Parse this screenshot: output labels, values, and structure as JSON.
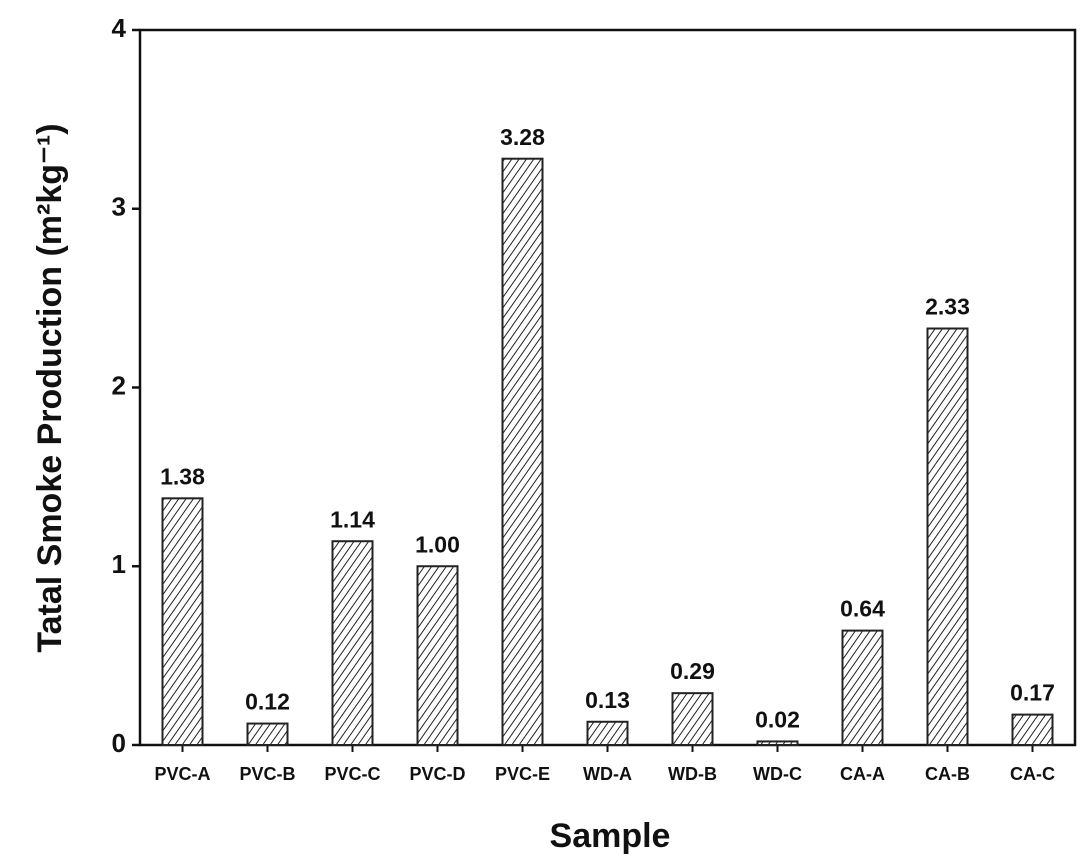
{
  "chart_data": {
    "type": "bar",
    "categories": [
      "PVC-A",
      "PVC-B",
      "PVC-C",
      "PVC-D",
      "PVC-E",
      "WD-A",
      "WD-B",
      "WD-C",
      "CA-A",
      "CA-B",
      "CA-C"
    ],
    "values": [
      1.38,
      0.12,
      1.14,
      1.0,
      3.28,
      0.13,
      0.29,
      0.02,
      0.64,
      2.33,
      0.17
    ],
    "value_labels": [
      "1.38",
      "0.12",
      "1.14",
      "1.00",
      "3.28",
      "0.13",
      "0.29",
      "0.02",
      "0.64",
      "2.33",
      "0.17"
    ],
    "color": "#222222",
    "ylim": [
      0,
      4
    ],
    "yticks": [
      0,
      1,
      2,
      3,
      4
    ],
    "x_label": "Sample",
    "y_label": "Tatal Smoke Production (m²kg⁻¹)"
  }
}
